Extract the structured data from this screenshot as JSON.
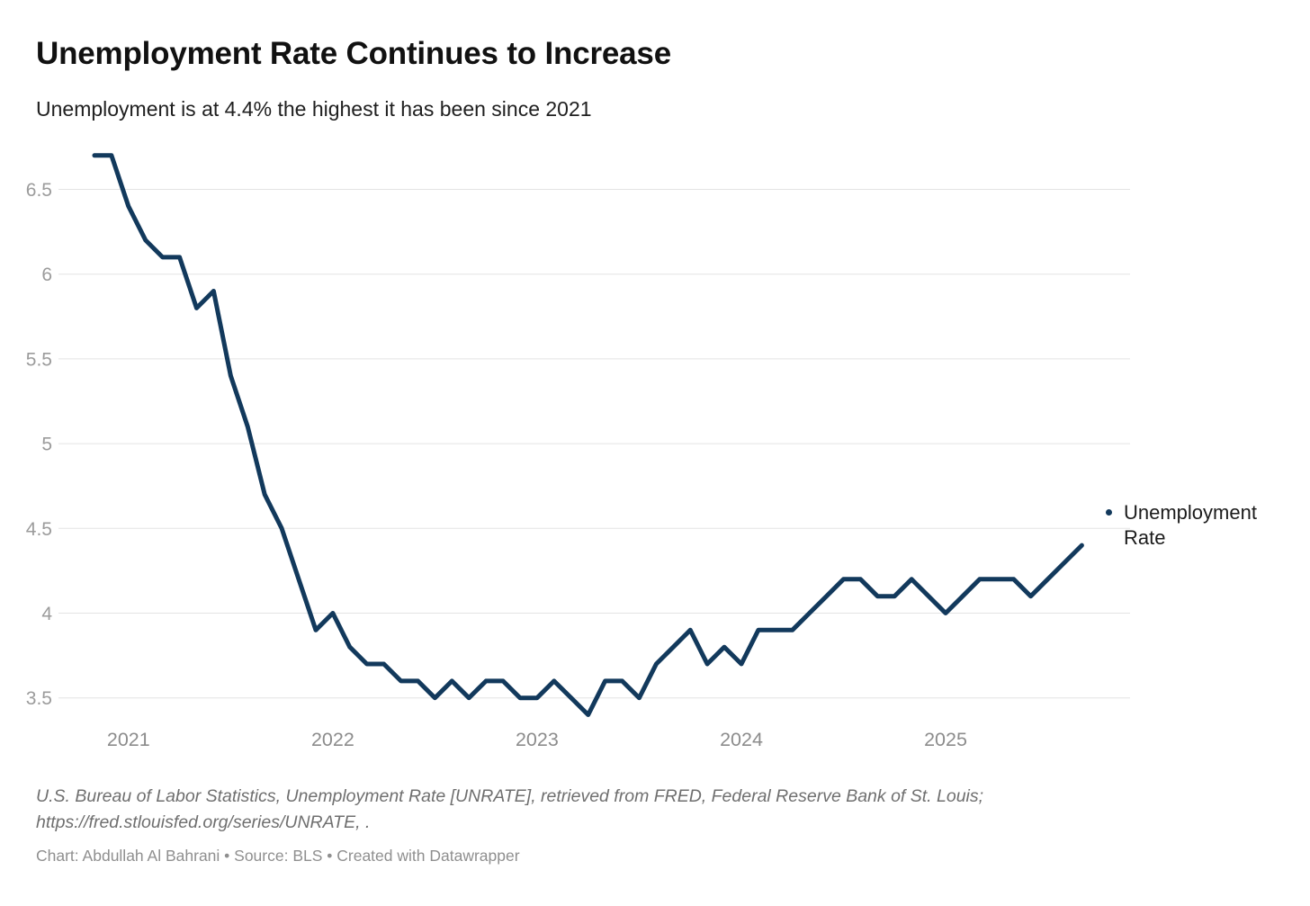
{
  "header": {
    "title": "Unemployment Rate Continues to Increase",
    "subtitle": "Unemployment is at 4.4% the highest it has been since 2021"
  },
  "legend": {
    "label": "Unemployment Rate"
  },
  "chart_data": {
    "type": "line",
    "title": "Unemployment Rate Continues to Increase",
    "subtitle": "Unemployment is at 4.4% the highest it has been since 2021",
    "xlabel": "",
    "ylabel": "",
    "unit": "percent",
    "grid": "horizontal",
    "legend_position": "right",
    "ylim": [
      3.3,
      6.75
    ],
    "yticks": [
      6.5,
      6,
      5.5,
      5,
      4.5,
      4,
      3.5
    ],
    "xticks": [
      "2021",
      "2022",
      "2023",
      "2024",
      "2025"
    ],
    "x": [
      "2020-11",
      "2020-12",
      "2021-01",
      "2021-02",
      "2021-03",
      "2021-04",
      "2021-05",
      "2021-06",
      "2021-07",
      "2021-08",
      "2021-09",
      "2021-10",
      "2021-11",
      "2021-12",
      "2022-01",
      "2022-02",
      "2022-03",
      "2022-04",
      "2022-05",
      "2022-06",
      "2022-07",
      "2022-08",
      "2022-09",
      "2022-10",
      "2022-11",
      "2022-12",
      "2023-01",
      "2023-02",
      "2023-03",
      "2023-04",
      "2023-05",
      "2023-06",
      "2023-07",
      "2023-08",
      "2023-09",
      "2023-10",
      "2023-11",
      "2023-12",
      "2024-01",
      "2024-02",
      "2024-03",
      "2024-04",
      "2024-05",
      "2024-06",
      "2024-07",
      "2024-08",
      "2024-09",
      "2024-10",
      "2024-11",
      "2024-12",
      "2025-01",
      "2025-02",
      "2025-03",
      "2025-04",
      "2025-05",
      "2025-06",
      "2025-07",
      "2025-08",
      "2025-09"
    ],
    "series": [
      {
        "name": "Unemployment Rate",
        "values": [
          6.7,
          6.7,
          6.4,
          6.2,
          6.1,
          6.1,
          5.8,
          5.9,
          5.4,
          5.1,
          4.7,
          4.5,
          4.2,
          3.9,
          4.0,
          3.8,
          3.7,
          3.7,
          3.6,
          3.6,
          3.5,
          3.6,
          3.5,
          3.6,
          3.6,
          3.5,
          3.5,
          3.6,
          3.5,
          3.4,
          3.6,
          3.6,
          3.5,
          3.7,
          3.8,
          3.9,
          3.7,
          3.8,
          3.7,
          3.9,
          3.9,
          3.9,
          4.0,
          4.1,
          4.2,
          4.2,
          4.1,
          4.1,
          4.2,
          4.1,
          4.0,
          4.1,
          4.2,
          4.2,
          4.2,
          4.1,
          4.2,
          4.3,
          4.4
        ]
      }
    ]
  },
  "colors": {
    "line": "#12395c",
    "grid": "#e4e4e4",
    "axis_text_y": "#9b9b9b",
    "axis_text_x": "#8c8c8c",
    "background": "#ffffff"
  },
  "footer": {
    "source_line1": "U.S. Bureau of Labor Statistics, Unemployment Rate [UNRATE], retrieved from FRED, Federal Reserve Bank of St. Louis;",
    "source_line2": "https://fred.stlouisfed.org/series/UNRATE, .",
    "credit": "Chart: Abdullah Al Bahrani • Source: BLS • Created with Datawrapper"
  }
}
